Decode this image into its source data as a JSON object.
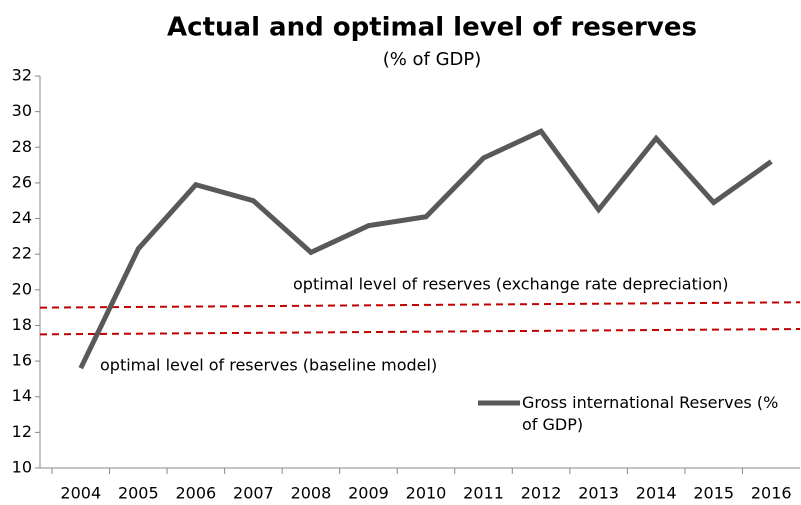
{
  "chart_data": {
    "type": "line",
    "title": "Actual and optimal level of reserves",
    "subtitle": "(% of GDP)",
    "categories": [
      "2004",
      "2005",
      "2006",
      "2007",
      "2008",
      "2009",
      "2010",
      "2011",
      "2012",
      "2013",
      "2014",
      "2015",
      "2016"
    ],
    "series": [
      {
        "name": "Gross international Reserves (% of GDP)",
        "color": "#595959",
        "values": [
          15.6,
          22.3,
          25.9,
          25.0,
          22.1,
          23.6,
          24.1,
          27.4,
          28.9,
          24.5,
          28.5,
          24.9,
          27.2
        ]
      }
    ],
    "reference_lines": [
      {
        "label": "optimal level of reserves (exchange rate depreciation)",
        "color": "#c00000",
        "values": [
          19.0,
          19.3
        ]
      },
      {
        "label": "optimal level of reserves (baseline model)",
        "color": "#c00000",
        "values": [
          17.5,
          17.8
        ]
      }
    ],
    "ylim": [
      10,
      32
    ],
    "yticks": [
      10,
      12,
      14,
      16,
      18,
      20,
      22,
      24,
      26,
      28,
      30,
      32
    ]
  }
}
